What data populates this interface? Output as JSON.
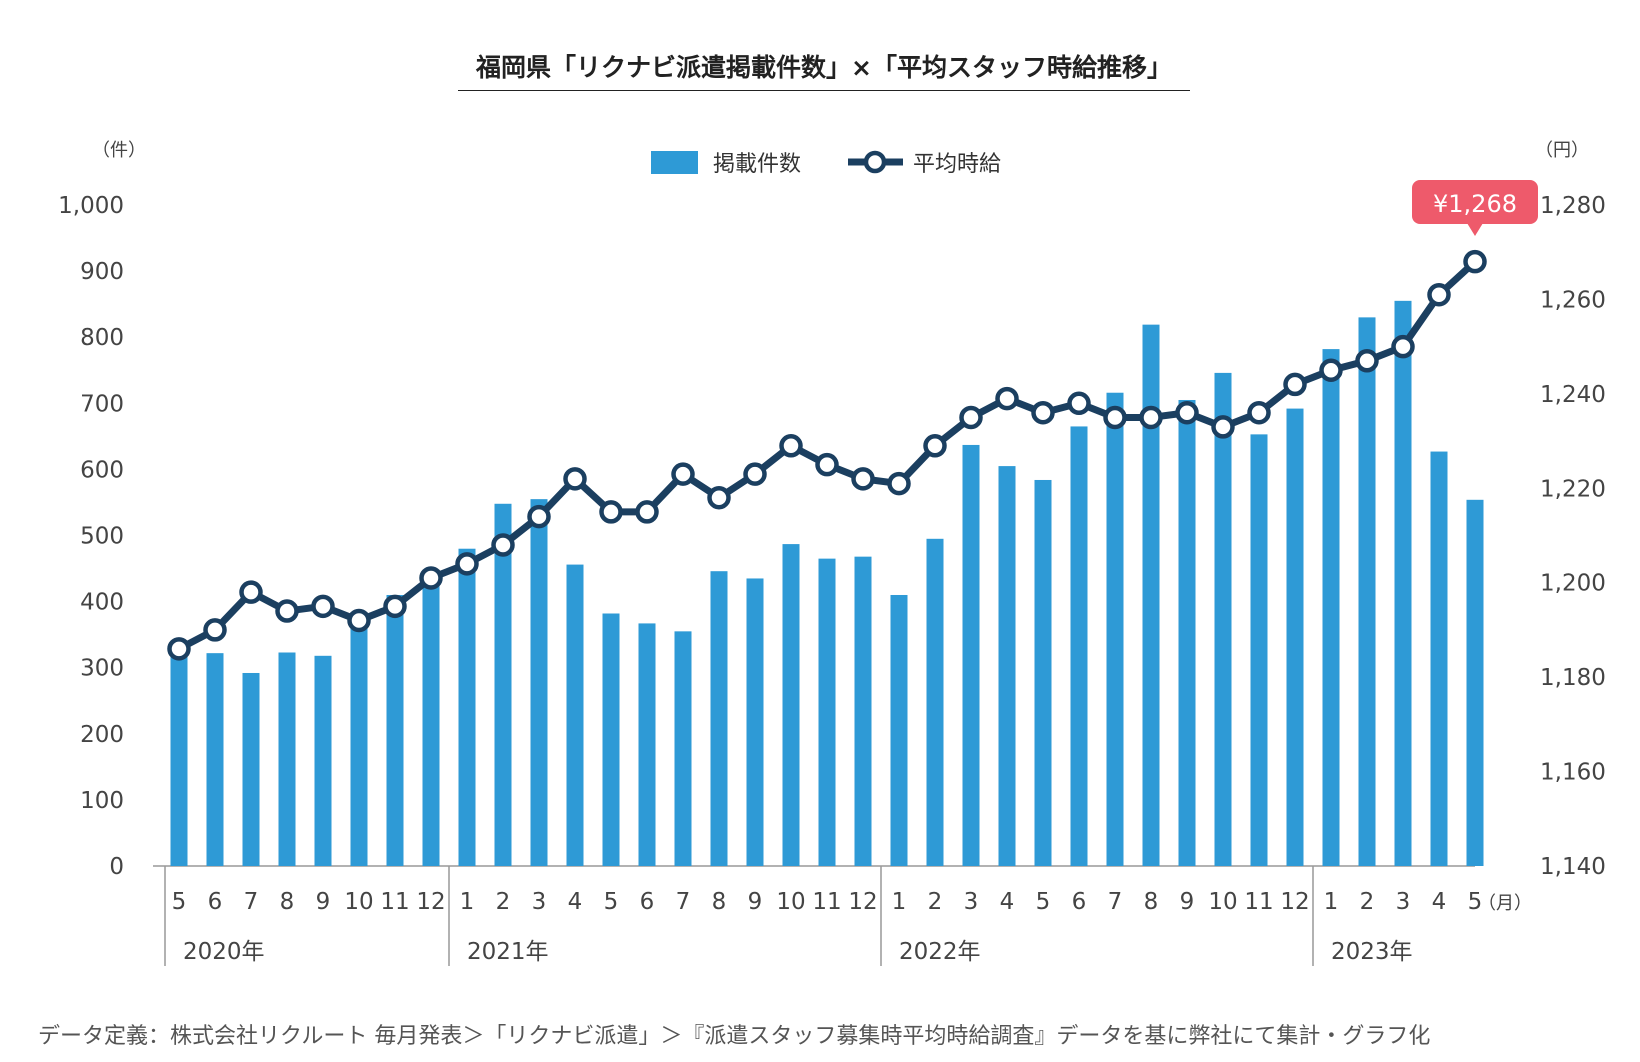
{
  "chart_data": {
    "type": "bar+line",
    "title": "福岡県「リクナビ派遣掲載件数」×「平均スタッフ時給推移」",
    "ylabel_left": "（件）",
    "ylabel_right": "（円）",
    "x_unit": "（月）",
    "y_left_lim": [
      0,
      1000
    ],
    "y_left_ticks": [
      "0",
      "100",
      "200",
      "300",
      "400",
      "500",
      "600",
      "700",
      "800",
      "900",
      "1,000"
    ],
    "y_right_lim": [
      1140,
      1280
    ],
    "y_right_ticks": [
      "1,140",
      "1,160",
      "1,180",
      "1,200",
      "1,220",
      "1,240",
      "1,260",
      "1,280"
    ],
    "categories": [
      "5",
      "6",
      "7",
      "8",
      "9",
      "10",
      "11",
      "12",
      "1",
      "2",
      "3",
      "4",
      "5",
      "6",
      "7",
      "8",
      "9",
      "10",
      "11",
      "12",
      "1",
      "2",
      "3",
      "4",
      "5",
      "6",
      "7",
      "8",
      "9",
      "10",
      "11",
      "12",
      "1",
      "2",
      "3",
      "4",
      "5"
    ],
    "year_groups": [
      {
        "label": "2020年",
        "start": 0,
        "count": 8
      },
      {
        "label": "2021年",
        "start": 8,
        "count": 12
      },
      {
        "label": "2022年",
        "start": 20,
        "count": 12
      },
      {
        "label": "2023年",
        "start": 32,
        "count": 5
      }
    ],
    "series": [
      {
        "name": "掲載件数",
        "axis": "left",
        "type": "bar",
        "color": "#2e9ad6",
        "values": [
          325,
          322,
          292,
          323,
          318,
          372,
          410,
          432,
          480,
          548,
          555,
          456,
          382,
          367,
          355,
          446,
          435,
          487,
          465,
          468,
          410,
          495,
          637,
          605,
          584,
          665,
          716,
          819,
          705,
          746,
          653,
          692,
          782,
          830,
          855,
          627,
          554
        ]
      },
      {
        "name": "平均時給",
        "axis": "right",
        "type": "line",
        "color": "#1b3f60",
        "values": [
          1186,
          1190,
          1198,
          1194,
          1195,
          1192,
          1195,
          1201,
          1204,
          1208,
          1214,
          1222,
          1215,
          1215,
          1223,
          1218,
          1223,
          1229,
          1225,
          1222,
          1221,
          1229,
          1235,
          1239,
          1236,
          1238,
          1235,
          1235,
          1236,
          1233,
          1236,
          1242,
          1245,
          1247,
          1250,
          1261,
          1268
        ]
      }
    ],
    "annotation": {
      "label": "¥1,268",
      "color": "#ee5a6b"
    },
    "legend_position": "top-center",
    "grid": false
  },
  "footnote": "データ定義：株式会社リクルート 毎月発表＞「リクナビ派遣」＞『派遣スタッフ募集時平均時給調査』データを基に弊社にて集計・グラフ化"
}
